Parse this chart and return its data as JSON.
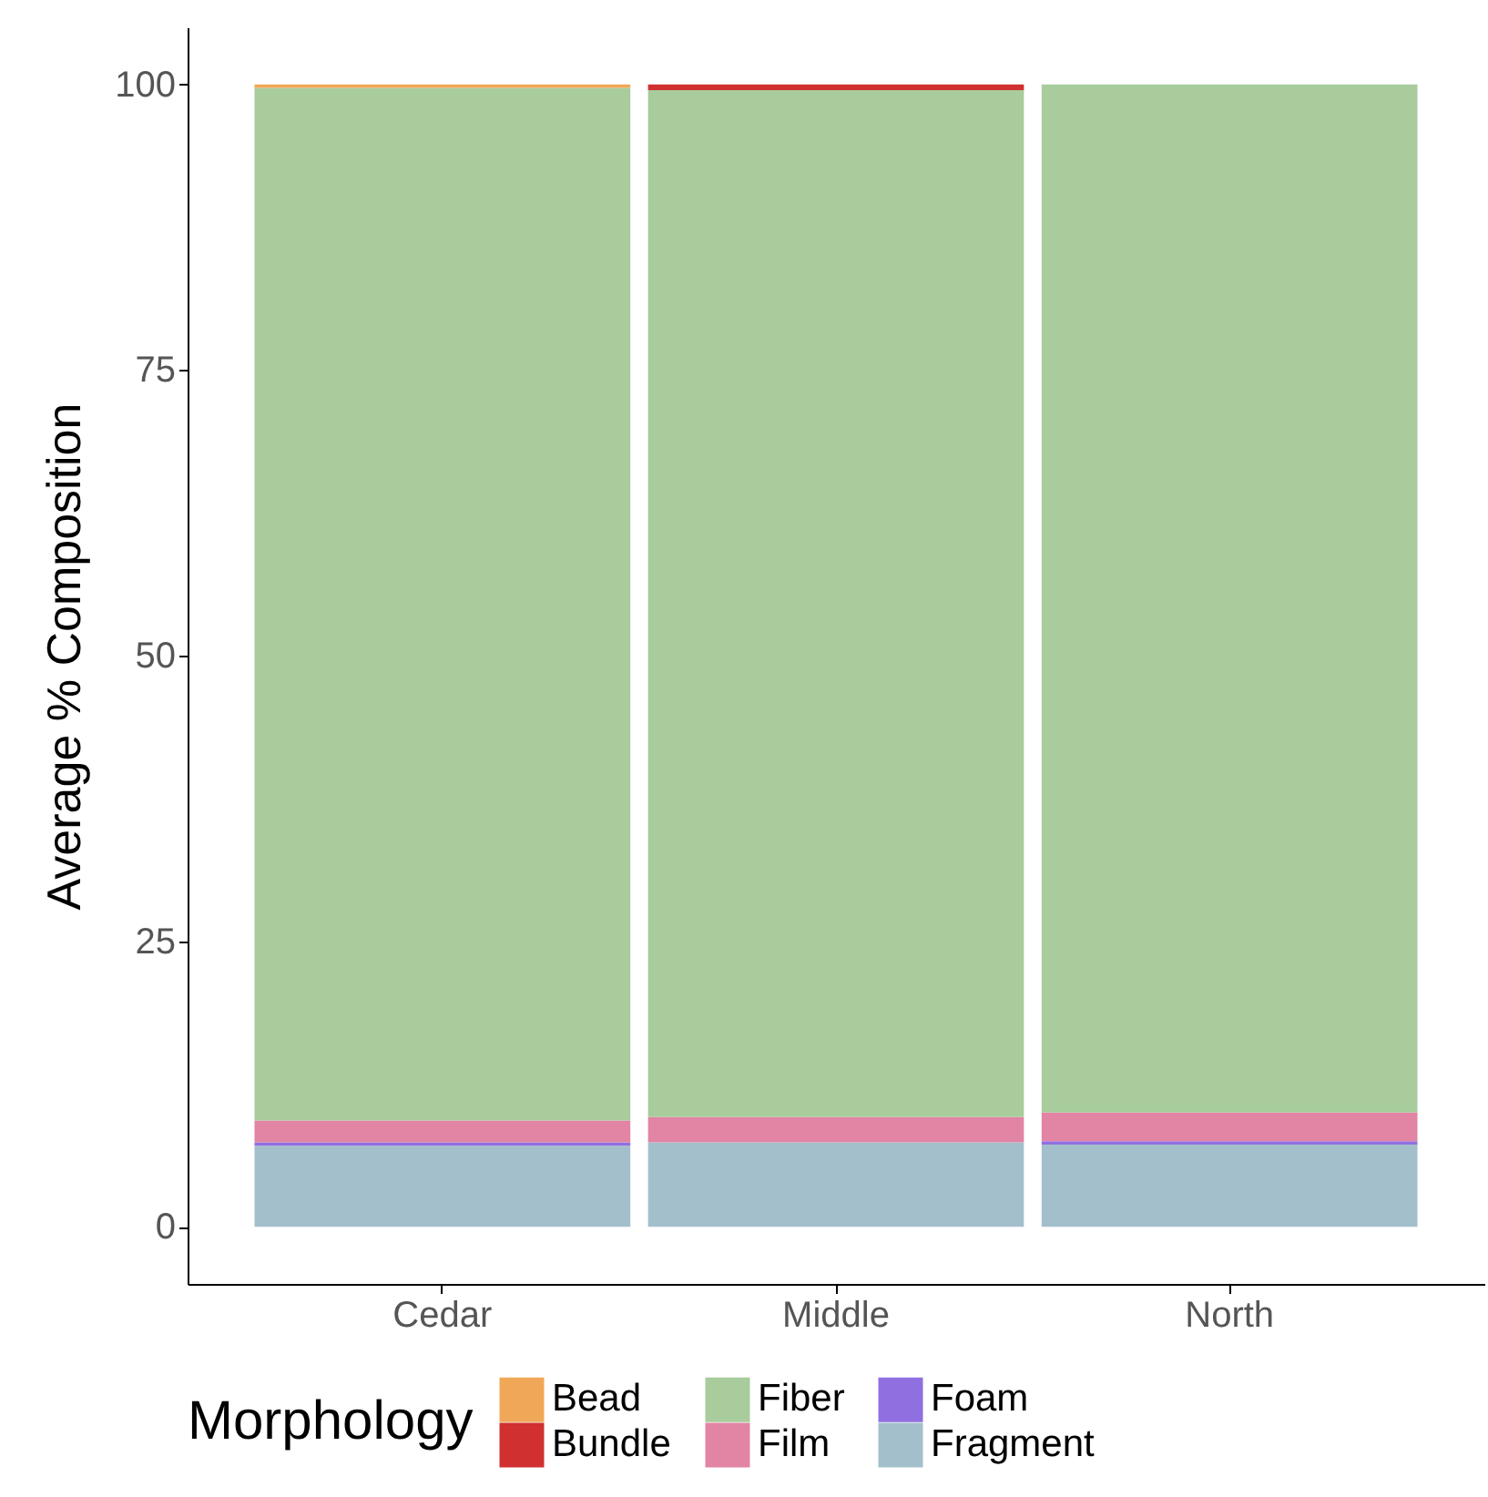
{
  "chart_data": {
    "type": "bar",
    "stacked": true,
    "ylabel": "Average % Composition",
    "legend_title": "Morphology",
    "legend": "bottom",
    "categories": [
      "Cedar",
      "Middle",
      "North"
    ],
    "series": [
      {
        "name": "Fragment",
        "color": "#a4bfcc",
        "values": [
          7.1,
          7.4,
          7.2
        ]
      },
      {
        "name": "Foam",
        "color": "#9070e0",
        "values": [
          0.3,
          0,
          0.3
        ]
      },
      {
        "name": "Film",
        "color": "#e284a4",
        "values": [
          1.9,
          2.2,
          2.5
        ]
      },
      {
        "name": "Fiber",
        "color": "#a8cc9c",
        "values": [
          90.4,
          89.9,
          90.0
        ]
      },
      {
        "name": "Bundle",
        "color": "#d03030",
        "values": [
          0,
          0.5,
          0
        ]
      },
      {
        "name": "Bead",
        "color": "#f0a858",
        "values": [
          0.3,
          0,
          0
        ]
      }
    ],
    "ylim": [
      -5,
      105
    ],
    "yticks": [
      0,
      25,
      50,
      75,
      100
    ]
  }
}
